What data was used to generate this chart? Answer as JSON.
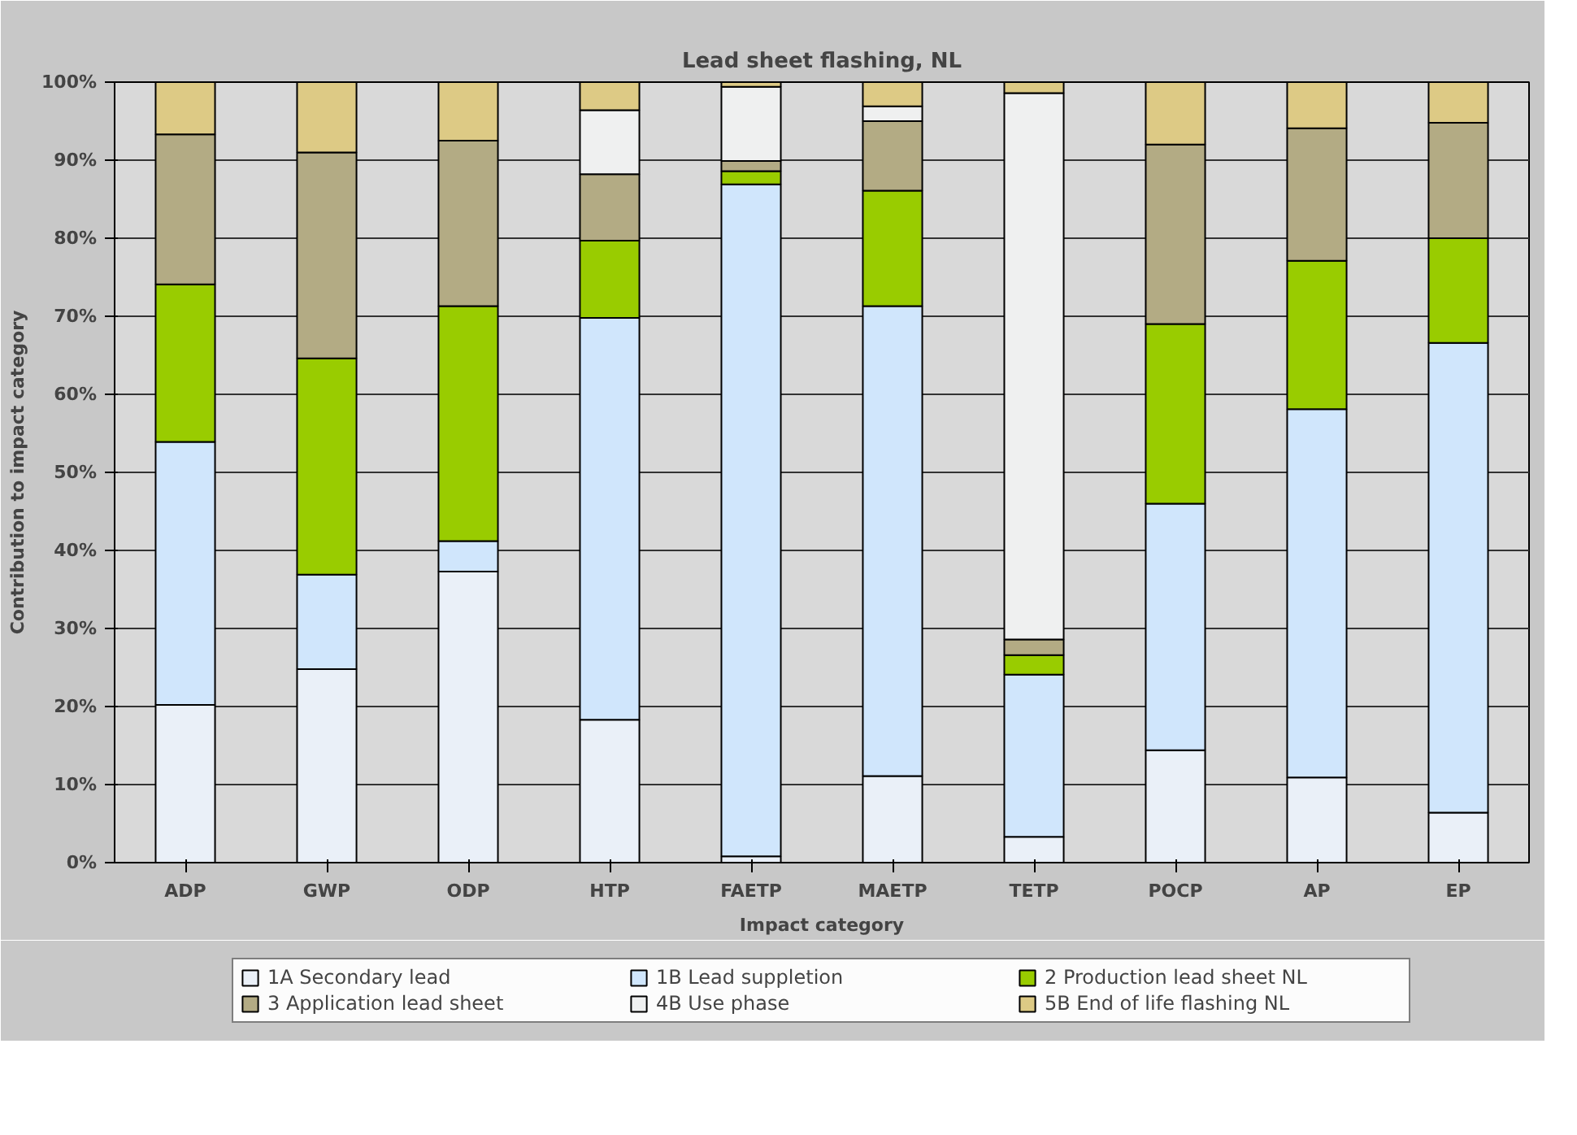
{
  "chart_data": {
    "type": "bar",
    "stacked": true,
    "title": "Lead sheet flashing, NL",
    "xlabel": "Impact category",
    "ylabel": "Contribution to impact category",
    "categories": [
      "ADP",
      "GWP",
      "ODP",
      "HTP",
      "FAETP",
      "MAETP",
      "TETP",
      "POCP",
      "AP",
      "EP"
    ],
    "series": [
      {
        "name": "1A Secondary lead",
        "color": "#eaf0f8",
        "values": [
          20.2,
          24.8,
          37.3,
          18.3,
          0.8,
          11.1,
          3.3,
          14.4,
          10.9,
          6.4
        ]
      },
      {
        "name": "1B Lead suppletion",
        "color": "#d0e6fc",
        "values": [
          33.7,
          12.1,
          3.9,
          51.5,
          86.1,
          60.2,
          20.8,
          31.6,
          47.2,
          60.2
        ]
      },
      {
        "name": "2 Production lead sheet NL",
        "color": "#99cc00",
        "values": [
          20.2,
          27.7,
          30.1,
          9.9,
          1.7,
          14.8,
          2.5,
          23.0,
          19.0,
          13.4
        ]
      },
      {
        "name": "3 Application lead sheet",
        "color": "#b3ab84",
        "values": [
          19.2,
          26.4,
          21.2,
          8.5,
          1.3,
          8.9,
          2.0,
          23.0,
          17.0,
          14.8
        ]
      },
      {
        "name": "4B Use phase",
        "color": "#eff0f0",
        "values": [
          null,
          null,
          null,
          8.2,
          9.5,
          1.9,
          70.0,
          null,
          null,
          null
        ]
      },
      {
        "name": "5B End of life flashing NL",
        "color": "#ddca85",
        "values": [
          6.7,
          9.0,
          7.5,
          3.6,
          0.6,
          3.1,
          1.4,
          8.0,
          5.9,
          5.2
        ]
      }
    ],
    "ylim": [
      0,
      100
    ],
    "yticks": [
      {
        "value": 0,
        "label": "0%"
      },
      {
        "value": 10,
        "label": "10%"
      },
      {
        "value": 20,
        "label": "20%"
      },
      {
        "value": 30,
        "label": "30%"
      },
      {
        "value": 40,
        "label": "40%"
      },
      {
        "value": 50,
        "label": "50%"
      },
      {
        "value": 60,
        "label": "60%"
      },
      {
        "value": 70,
        "label": "70%"
      },
      {
        "value": 80,
        "label": "80%"
      },
      {
        "value": 90,
        "label": "90%"
      },
      {
        "value": 100,
        "label": "100%"
      }
    ],
    "grid": "y",
    "legend": "bottom"
  }
}
